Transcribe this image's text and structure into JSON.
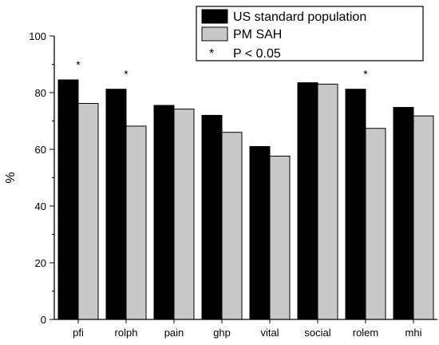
{
  "chart_data": {
    "type": "bar",
    "categories": [
      "pfi",
      "rolph",
      "pain",
      "ghp",
      "vital",
      "social",
      "rolem",
      "mhi"
    ],
    "series": [
      {
        "name": "US standard population",
        "color": "#000000",
        "values": [
          84.5,
          81.2,
          75.5,
          72.0,
          61.0,
          83.5,
          81.2,
          74.8
        ]
      },
      {
        "name": "PM SAH",
        "color": "#c8c8c8",
        "values": [
          76.2,
          68.2,
          74.2,
          66.0,
          57.6,
          83.0,
          67.4,
          71.8
        ]
      }
    ],
    "significant": [
      true,
      true,
      false,
      false,
      false,
      false,
      true,
      false
    ],
    "significance_marker": "*",
    "significance_label": "P < 0.05",
    "ylabel": "%",
    "xlabel": "",
    "ylim": [
      0,
      100
    ],
    "yticks": [
      0,
      20,
      40,
      60,
      80,
      100
    ],
    "grid": false,
    "legend_position": "top-right"
  }
}
